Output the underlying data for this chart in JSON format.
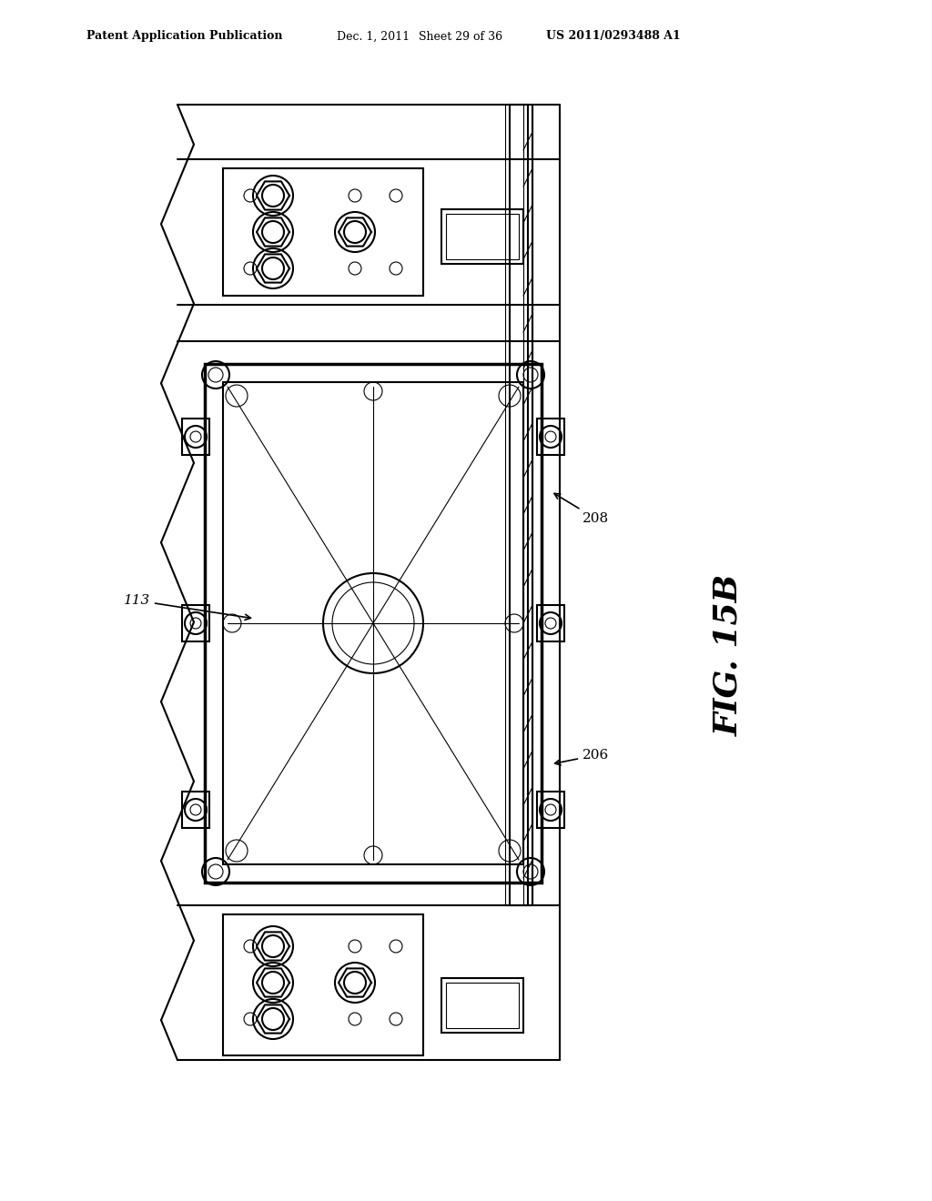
{
  "bg_color": "#ffffff",
  "line_color": "#000000",
  "header_text": "Patent Application Publication",
  "header_date": "Dec. 1, 2011",
  "header_sheet": "Sheet 29 of 36",
  "header_patent": "US 2011/0293488 A1",
  "fig_label": "FIG. 15B",
  "label_113": "113",
  "label_208": "208",
  "label_206": "206"
}
